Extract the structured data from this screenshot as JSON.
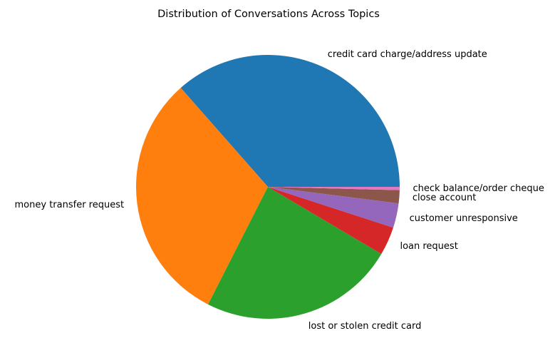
{
  "chart_data": {
    "type": "pie",
    "title": "Distribution of Conversations Across Topics",
    "start_angle_deg": 0,
    "direction": "counterclockwise",
    "legend": "none",
    "slices": [
      {
        "label": "credit card charge/address update",
        "value": 36.5,
        "color": "#1f77b4"
      },
      {
        "label": "money transfer request",
        "value": 31.0,
        "color": "#ff7f0e"
      },
      {
        "label": "lost or stolen credit card",
        "value": 24.0,
        "color": "#2ca02c"
      },
      {
        "label": "loan request",
        "value": 3.5,
        "color": "#d62728"
      },
      {
        "label": "customer unresponsive",
        "value": 3.0,
        "color": "#9467bd"
      },
      {
        "label": "close account",
        "value": 1.6,
        "color": "#8c564b"
      },
      {
        "label": "check balance/order cheque",
        "value": 0.4,
        "color": "#e377c2"
      }
    ]
  }
}
